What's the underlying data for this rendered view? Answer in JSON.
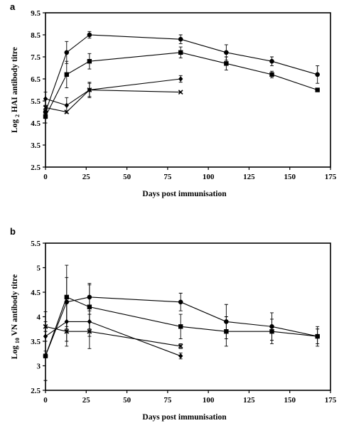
{
  "chart_data": [
    {
      "type": "line",
      "panel_label": "a",
      "xlabel": "Days post immunisation",
      "ylabel": "Log 2 HAI antibody titre",
      "ylabel_parts": [
        "Log ",
        "2",
        " HAI antibody titre"
      ],
      "xlim": [
        0,
        175
      ],
      "ylim": [
        2.5,
        9.5
      ],
      "xticks": [
        0,
        25,
        50,
        75,
        100,
        125,
        150,
        175
      ],
      "yticks": [
        2.5,
        3.5,
        4.5,
        5.5,
        6.5,
        7.5,
        8.5,
        9.5
      ],
      "grid": false,
      "series": [
        {
          "marker": "circle",
          "points": [
            {
              "x": 0,
              "y": 5.0,
              "err": 0.3
            },
            {
              "x": 13,
              "y": 7.7,
              "err": 0.5
            },
            {
              "x": 27,
              "y": 8.5,
              "err": 0.15
            },
            {
              "x": 83,
              "y": 8.3,
              "err": 0.2
            },
            {
              "x": 111,
              "y": 7.7,
              "err": 0.35
            },
            {
              "x": 139,
              "y": 7.3,
              "err": 0.2
            },
            {
              "x": 167,
              "y": 6.7,
              "err": 0.4
            }
          ]
        },
        {
          "marker": "square",
          "points": [
            {
              "x": 0,
              "y": 4.8,
              "err": 0.3
            },
            {
              "x": 13,
              "y": 6.7,
              "err": 0.6
            },
            {
              "x": 27,
              "y": 7.3,
              "err": 0.35
            },
            {
              "x": 83,
              "y": 7.7,
              "err": 0.25
            },
            {
              "x": 111,
              "y": 7.2,
              "err": 0.3
            },
            {
              "x": 139,
              "y": 6.7,
              "err": 0.15
            },
            {
              "x": 167,
              "y": 6.0,
              "err": 0.0
            }
          ]
        },
        {
          "marker": "diamond",
          "points": [
            {
              "x": 0,
              "y": 5.6,
              "err": 0.3
            },
            {
              "x": 13,
              "y": 5.3,
              "err": 0.35
            },
            {
              "x": 27,
              "y": 6.0,
              "err": 0.3
            },
            {
              "x": 83,
              "y": 6.5,
              "err": 0.15
            }
          ]
        },
        {
          "marker": "cross",
          "points": [
            {
              "x": 0,
              "y": 5.2,
              "err": 0.4
            },
            {
              "x": 13,
              "y": 5.0,
              "err": 0.0
            },
            {
              "x": 27,
              "y": 6.0,
              "err": 0.35
            },
            {
              "x": 83,
              "y": 5.9,
              "err": 0.0
            }
          ]
        }
      ]
    },
    {
      "type": "line",
      "panel_label": "b",
      "xlabel": "Days post immunisation",
      "ylabel": "Log 10 VN antibody titre",
      "ylabel_parts": [
        "Log ",
        "10",
        " VN antibody titre"
      ],
      "xlim": [
        0,
        175
      ],
      "ylim": [
        2.5,
        5.5
      ],
      "xticks": [
        0,
        25,
        50,
        75,
        100,
        125,
        150,
        175
      ],
      "yticks": [
        2.5,
        3,
        3.5,
        4,
        4.5,
        5,
        5.5
      ],
      "ytick_labels": [
        "2.5",
        "3",
        "3.5",
        "4",
        "4.5",
        "5",
        "5.5"
      ],
      "grid": false,
      "series": [
        {
          "marker": "circle",
          "points": [
            {
              "x": 0,
              "y": 3.2,
              "err": 0.5
            },
            {
              "x": 13,
              "y": 4.3,
              "err": 0.5
            },
            {
              "x": 27,
              "y": 4.4,
              "err": 0.28
            },
            {
              "x": 83,
              "y": 4.3,
              "err": 0.18
            },
            {
              "x": 111,
              "y": 3.9,
              "err": 0.35
            },
            {
              "x": 139,
              "y": 3.8,
              "err": 0.28
            },
            {
              "x": 167,
              "y": 3.6,
              "err": 0.15
            }
          ]
        },
        {
          "marker": "square",
          "points": [
            {
              "x": 0,
              "y": 3.2,
              "err": 0.5
            },
            {
              "x": 13,
              "y": 4.4,
              "err": 0.65
            },
            {
              "x": 27,
              "y": 4.2,
              "err": 0.45
            },
            {
              "x": 83,
              "y": 3.8,
              "err": 0.25
            },
            {
              "x": 111,
              "y": 3.7,
              "err": 0.3
            },
            {
              "x": 139,
              "y": 3.7,
              "err": 0.25
            },
            {
              "x": 167,
              "y": 3.6,
              "err": 0.2
            }
          ]
        },
        {
          "marker": "diamond",
          "points": [
            {
              "x": 0,
              "y": 3.6,
              "err": 0.3
            },
            {
              "x": 13,
              "y": 3.9,
              "err": 0.5
            },
            {
              "x": 27,
              "y": 3.9,
              "err": 0.3
            },
            {
              "x": 83,
              "y": 3.2,
              "err": 0.06
            }
          ]
        },
        {
          "marker": "cross",
          "points": [
            {
              "x": 0,
              "y": 3.8,
              "err": 0.3
            },
            {
              "x": 13,
              "y": 3.7,
              "err": 0.2
            },
            {
              "x": 27,
              "y": 3.7,
              "err": 0.35
            },
            {
              "x": 83,
              "y": 3.4,
              "err": 0.05
            }
          ]
        }
      ]
    }
  ]
}
